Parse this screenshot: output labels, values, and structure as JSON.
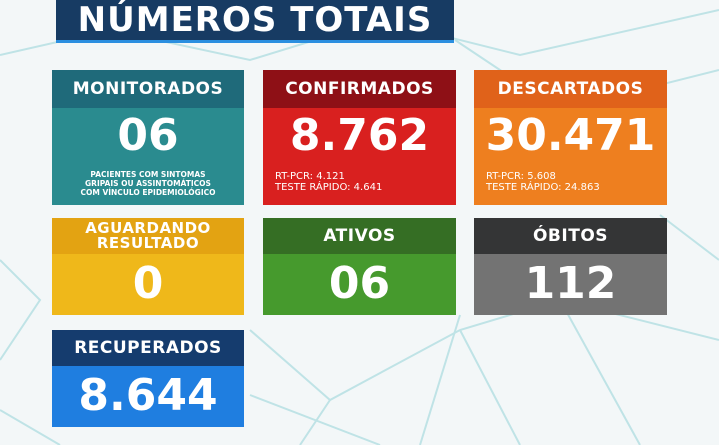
{
  "title": "NÚMEROS TOTAIS",
  "colors": {
    "background": "#f3f7f8",
    "title_bg": "#173b63",
    "monitorados": "#1f6a7a",
    "confirmados": "#a41418",
    "descartados": "#e4671a",
    "aguardando": "#e6a915",
    "ativos": "#3e8a27",
    "obitos": "#3a3b3c",
    "recuperados": "#153c6e"
  },
  "monitorados": {
    "label": "MONITORADOS",
    "value": "06",
    "note_line1": "PACIENTES COM SINTOMAS",
    "note_line2": "GRIPAIS OU ASSINTOMÁTICOS",
    "note_line3": "COM VÍNCULO EPIDEMIOLÓGICO"
  },
  "confirmados": {
    "label": "CONFIRMADOS",
    "value": "8.762",
    "detail_line1": "RT-PCR: 4.121",
    "detail_line2": "TESTE RÁPIDO: 4.641"
  },
  "descartados": {
    "label": "DESCARTADOS",
    "value": "30.471",
    "detail_line1": "RT-PCR: 5.608",
    "detail_line2": "TESTE RÁPIDO: 24.863"
  },
  "aguardando": {
    "label_line1": "AGUARDANDO",
    "label_line2": "RESULTADO",
    "value": "0"
  },
  "ativos": {
    "label": "ATIVOS",
    "value": "06"
  },
  "obitos": {
    "label": "ÓBITOS",
    "value": "112"
  },
  "recuperados": {
    "label": "RECUPERADOS",
    "value": "8.644"
  }
}
